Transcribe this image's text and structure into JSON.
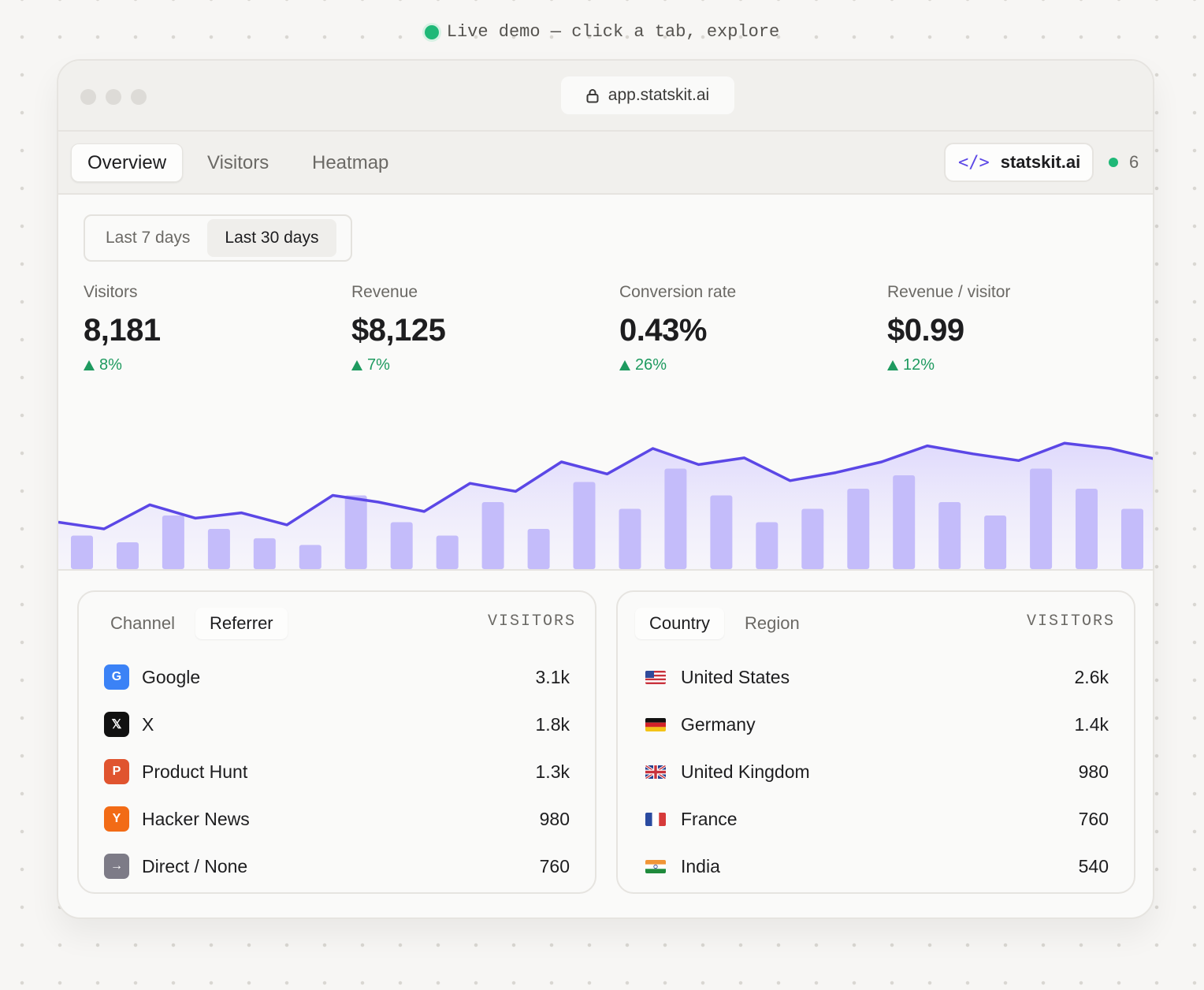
{
  "banner": {
    "text": "Live demo — click a tab, explore"
  },
  "browser": {
    "url": "app.statskit.ai"
  },
  "nav": {
    "tabs": [
      "Overview",
      "Visitors",
      "Heatmap"
    ],
    "active_tab": "Overview",
    "site": "statskit.ai",
    "online_count": "6"
  },
  "range": {
    "options": [
      "Last 7 days",
      "Last 30 days"
    ],
    "selected": "Last 30 days"
  },
  "metrics": [
    {
      "label": "Visitors",
      "value": "8,181",
      "delta": "8%"
    },
    {
      "label": "Revenue",
      "value": "$8,125",
      "delta": "7%"
    },
    {
      "label": "Conversion rate",
      "value": "0.43%",
      "delta": "26%"
    },
    {
      "label": "Revenue / visitor",
      "value": "$0.99",
      "delta": "12%"
    }
  ],
  "chart_data": {
    "type": "bar",
    "series": [
      {
        "type": "bar",
        "values": [
          25,
          20,
          40,
          30,
          23,
          18,
          55,
          35,
          25,
          50,
          30,
          65,
          45,
          75,
          55,
          35,
          45,
          60,
          70,
          50,
          40,
          75,
          60,
          45
        ]
      },
      {
        "type": "line",
        "values": [
          35,
          30,
          48,
          38,
          42,
          33,
          55,
          50,
          43,
          64,
          58,
          80,
          71,
          90,
          78,
          83,
          66,
          72,
          80,
          92,
          86,
          81,
          94,
          90,
          82
        ]
      }
    ],
    "colors": {
      "bar": "#c4bcfa",
      "line": "#5b47e6",
      "area": "#e2ddfc"
    }
  },
  "referrers": {
    "tabs": [
      "Channel",
      "Referrer"
    ],
    "active_tab": "Referrer",
    "column": "VISITORS",
    "rows": [
      {
        "icon": "google-icon",
        "glyph": "G",
        "color": "#3b82f6",
        "name": "Google",
        "value": "3.1k"
      },
      {
        "icon": "x-icon",
        "glyph": "𝕏",
        "color": "#111111",
        "name": "X",
        "value": "1.8k"
      },
      {
        "icon": "product-hunt-icon",
        "glyph": "P",
        "color": "#e0542f",
        "name": "Product Hunt",
        "value": "1.3k"
      },
      {
        "icon": "hacker-news-icon",
        "glyph": "Y",
        "color": "#f26b16",
        "name": "Hacker News",
        "value": "980"
      },
      {
        "icon": "direct-arrow-icon",
        "glyph": "→",
        "color": "#7d7b87",
        "name": "Direct / None",
        "value": "760"
      }
    ]
  },
  "countries": {
    "tabs": [
      "Country",
      "Region"
    ],
    "active_tab": "Country",
    "column": "VISITORS",
    "rows": [
      {
        "flag": "us-flag-icon",
        "name": "United States",
        "value": "2.6k"
      },
      {
        "flag": "de-flag-icon",
        "name": "Germany",
        "value": "1.4k"
      },
      {
        "flag": "gb-flag-icon",
        "name": "United Kingdom",
        "value": "980"
      },
      {
        "flag": "fr-flag-icon",
        "name": "France",
        "value": "760"
      },
      {
        "flag": "in-flag-icon",
        "name": "India",
        "value": "540"
      }
    ]
  }
}
